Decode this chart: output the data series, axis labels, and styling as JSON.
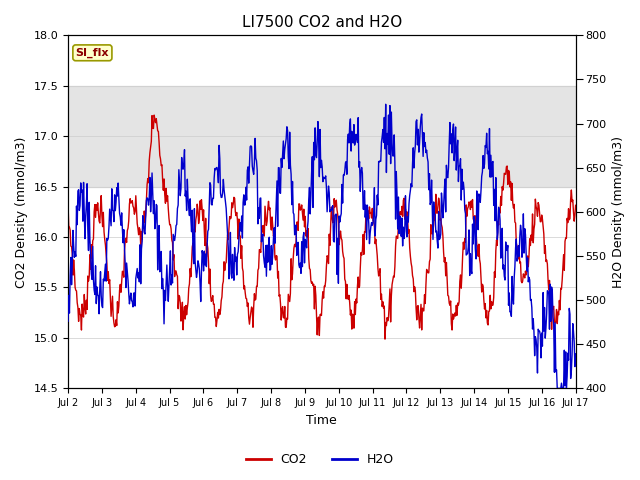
{
  "title": "LI7500 CO2 and H2O",
  "xlabel": "Time",
  "ylabel_left": "CO2 Density (mmol/m3)",
  "ylabel_right": "H2O Density (mmol/m3)",
  "annotation": "SI_flx",
  "co2_ylim": [
    14.5,
    18.0
  ],
  "h2o_ylim": [
    400,
    800
  ],
  "co2_yticks": [
    14.5,
    15.0,
    15.5,
    16.0,
    16.5,
    17.0,
    17.5,
    18.0
  ],
  "h2o_yticks": [
    400,
    450,
    500,
    550,
    600,
    650,
    700,
    750,
    800
  ],
  "xtick_labels": [
    "Jul 2",
    "Jul 3",
    "Jul 4",
    "Jul 5",
    "Jul 6",
    "Jul 7",
    "Jul 8",
    "Jul 9",
    "Jul 10",
    "Jul 11",
    "Jul 12",
    "Jul 13",
    "Jul 14",
    "Jul 15",
    "Jul 16",
    "Jul 17"
  ],
  "shaded_band_co2": [
    16.5,
    17.5
  ],
  "co2_color": "#cc0000",
  "h2o_color": "#0000cc",
  "background_color": "#ffffff",
  "legend_co2": "CO2",
  "legend_h2o": "H2O",
  "figwidth": 6.4,
  "figheight": 4.8,
  "dpi": 100
}
